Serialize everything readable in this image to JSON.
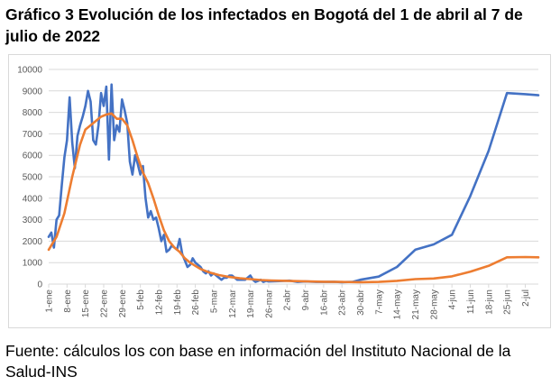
{
  "title": "Gráfico 3  Evolución de los infectados en Bogotá del 1 de abril al 7 de julio de 2022",
  "source": "Fuente: cálculos los con base en información del Instituto Nacional de la Salud-INS",
  "colors": {
    "series_blue": "#4472c4",
    "series_orange": "#ed7d31",
    "grid": "#d9d9d9",
    "axis_text": "#595959"
  },
  "chart_data": {
    "type": "line",
    "title": "",
    "xlabel": "",
    "ylabel": "",
    "ylim": [
      0,
      10000
    ],
    "yticks": [
      0,
      1000,
      2000,
      3000,
      4000,
      5000,
      6000,
      7000,
      8000,
      9000,
      10000
    ],
    "ytick_labels": [
      "0",
      "1000",
      "2000",
      "3000",
      "4000",
      "5000",
      "6000",
      "7000",
      "8000",
      "9000",
      "10000"
    ],
    "grid": true,
    "legend": "none",
    "xtick_labels": [
      "1-ene",
      "8-ene",
      "15-ene",
      "22-ene",
      "29-ene",
      "5-feb",
      "12-feb",
      "19-feb",
      "26-feb",
      "5-mar",
      "12-mar",
      "19-mar",
      "26-mar",
      "2-abr",
      "9-abr",
      "16-abr",
      "23-abr",
      "30-abr",
      "7-may",
      "14-may",
      "21-may",
      "28-may",
      "4-jun",
      "11-jun",
      "18-jun",
      "25-jun",
      "2-jul"
    ],
    "series": [
      {
        "color": "#4472c4",
        "points": [
          [
            "1-ene",
            2200
          ],
          [
            "2-ene",
            2400
          ],
          [
            "3-ene",
            1700
          ],
          [
            "4-ene",
            3000
          ],
          [
            "5-ene",
            3200
          ],
          [
            "6-ene",
            4600
          ],
          [
            "7-ene",
            5900
          ],
          [
            "8-ene",
            6700
          ],
          [
            "9-ene",
            8700
          ],
          [
            "10-ene",
            6600
          ],
          [
            "11-ene",
            5400
          ],
          [
            "12-ene",
            6900
          ],
          [
            "13-ene",
            7400
          ],
          [
            "14-ene",
            7800
          ],
          [
            "15-ene",
            8300
          ],
          [
            "16-ene",
            9000
          ],
          [
            "17-ene",
            8500
          ],
          [
            "18-ene",
            6700
          ],
          [
            "19-ene",
            6500
          ],
          [
            "20-ene",
            7400
          ],
          [
            "21-ene",
            8900
          ],
          [
            "22-ene",
            8300
          ],
          [
            "23-ene",
            9200
          ],
          [
            "24-ene",
            5800
          ],
          [
            "25-ene",
            9300
          ],
          [
            "26-ene",
            6700
          ],
          [
            "27-ene",
            7400
          ],
          [
            "28-ene",
            7100
          ],
          [
            "29-ene",
            8600
          ],
          [
            "30-ene",
            8100
          ],
          [
            "31-ene",
            7500
          ],
          [
            "1-feb",
            5700
          ],
          [
            "2-feb",
            5100
          ],
          [
            "3-feb",
            6000
          ],
          [
            "4-feb",
            5600
          ],
          [
            "5-feb",
            5100
          ],
          [
            "6-feb",
            5500
          ],
          [
            "7-feb",
            4000
          ],
          [
            "8-feb",
            3100
          ],
          [
            "9-feb",
            3400
          ],
          [
            "10-feb",
            3000
          ],
          [
            "11-feb",
            3100
          ],
          [
            "12-feb",
            2600
          ],
          [
            "13-feb",
            2000
          ],
          [
            "14-feb",
            2300
          ],
          [
            "15-feb",
            1500
          ],
          [
            "16-feb",
            1600
          ],
          [
            "17-feb",
            1800
          ],
          [
            "18-feb",
            1700
          ],
          [
            "19-feb",
            1600
          ],
          [
            "20-feb",
            2100
          ],
          [
            "21-feb",
            1400
          ],
          [
            "22-feb",
            1100
          ],
          [
            "23-feb",
            800
          ],
          [
            "24-feb",
            900
          ],
          [
            "25-feb",
            1200
          ],
          [
            "26-feb",
            1000
          ],
          [
            "27-feb",
            900
          ],
          [
            "28-feb",
            800
          ],
          [
            "1-mar",
            600
          ],
          [
            "2-mar",
            500
          ],
          [
            "3-mar",
            600
          ],
          [
            "4-mar",
            400
          ],
          [
            "5-mar",
            500
          ],
          [
            "6-mar",
            400
          ],
          [
            "7-mar",
            300
          ],
          [
            "8-mar",
            200
          ],
          [
            "9-mar",
            300
          ],
          [
            "10-mar",
            300
          ],
          [
            "11-mar",
            400
          ],
          [
            "12-mar",
            400
          ],
          [
            "13-mar",
            300
          ],
          [
            "14-mar",
            200
          ],
          [
            "15-mar",
            200
          ],
          [
            "16-mar",
            200
          ],
          [
            "17-mar",
            200
          ],
          [
            "18-mar",
            300
          ],
          [
            "19-mar",
            400
          ],
          [
            "20-mar",
            200
          ],
          [
            "21-mar",
            100
          ],
          [
            "22-mar",
            150
          ],
          [
            "23-mar",
            200
          ],
          [
            "24-mar",
            100
          ],
          [
            "25-mar",
            150
          ],
          [
            "26-mar",
            120
          ],
          [
            "30-mar",
            140
          ],
          [
            "3-abr",
            160
          ],
          [
            "6-abr",
            100
          ],
          [
            "9-abr",
            120
          ],
          [
            "13-abr",
            100
          ],
          [
            "16-abr",
            100
          ],
          [
            "20-abr",
            110
          ],
          [
            "23-abr",
            90
          ],
          [
            "27-abr",
            100
          ],
          [
            "30-abr",
            200
          ],
          [
            "7-may",
            350
          ],
          [
            "14-may",
            800
          ],
          [
            "21-may",
            1600
          ],
          [
            "28-may",
            1850
          ],
          [
            "4-jun",
            2300
          ],
          [
            "11-jun",
            4100
          ],
          [
            "18-jun",
            6200
          ],
          [
            "25-jun",
            8900
          ],
          [
            "2-jul",
            8850
          ],
          [
            "7-jul",
            8800
          ]
        ]
      },
      {
        "color": "#ed7d31",
        "points": [
          [
            "1-ene",
            1600
          ],
          [
            "4-ene",
            2200
          ],
          [
            "7-ene",
            3300
          ],
          [
            "10-ene",
            5000
          ],
          [
            "13-ene",
            6500
          ],
          [
            "15-ene",
            7200
          ],
          [
            "17-ene",
            7400
          ],
          [
            "19-ene",
            7600
          ],
          [
            "21-ene",
            7800
          ],
          [
            "23-ene",
            7900
          ],
          [
            "25-ene",
            7950
          ],
          [
            "27-ene",
            7700
          ],
          [
            "29-ene",
            7700
          ],
          [
            "31-ene",
            7400
          ],
          [
            "2-feb",
            6700
          ],
          [
            "4-feb",
            5900
          ],
          [
            "6-feb",
            5200
          ],
          [
            "8-feb",
            4700
          ],
          [
            "10-feb",
            4000
          ],
          [
            "12-feb",
            3200
          ],
          [
            "14-feb",
            2500
          ],
          [
            "16-feb",
            2000
          ],
          [
            "18-feb",
            1700
          ],
          [
            "20-feb",
            1500
          ],
          [
            "22-feb",
            1200
          ],
          [
            "24-feb",
            1000
          ],
          [
            "26-feb",
            850
          ],
          [
            "28-feb",
            700
          ],
          [
            "3-mar",
            560
          ],
          [
            "7-mar",
            420
          ],
          [
            "11-mar",
            330
          ],
          [
            "15-mar",
            270
          ],
          [
            "19-mar",
            230
          ],
          [
            "23-mar",
            190
          ],
          [
            "27-mar",
            170
          ],
          [
            "2-abr",
            150
          ],
          [
            "9-abr",
            130
          ],
          [
            "16-abr",
            110
          ],
          [
            "23-abr",
            100
          ],
          [
            "30-abr",
            90
          ],
          [
            "7-may",
            100
          ],
          [
            "14-may",
            150
          ],
          [
            "21-may",
            230
          ],
          [
            "28-may",
            260
          ],
          [
            "4-jun",
            360
          ],
          [
            "11-jun",
            580
          ],
          [
            "18-jun",
            850
          ],
          [
            "25-jun",
            1250
          ],
          [
            "2-jul",
            1260
          ],
          [
            "7-jul",
            1250
          ]
        ]
      }
    ]
  }
}
